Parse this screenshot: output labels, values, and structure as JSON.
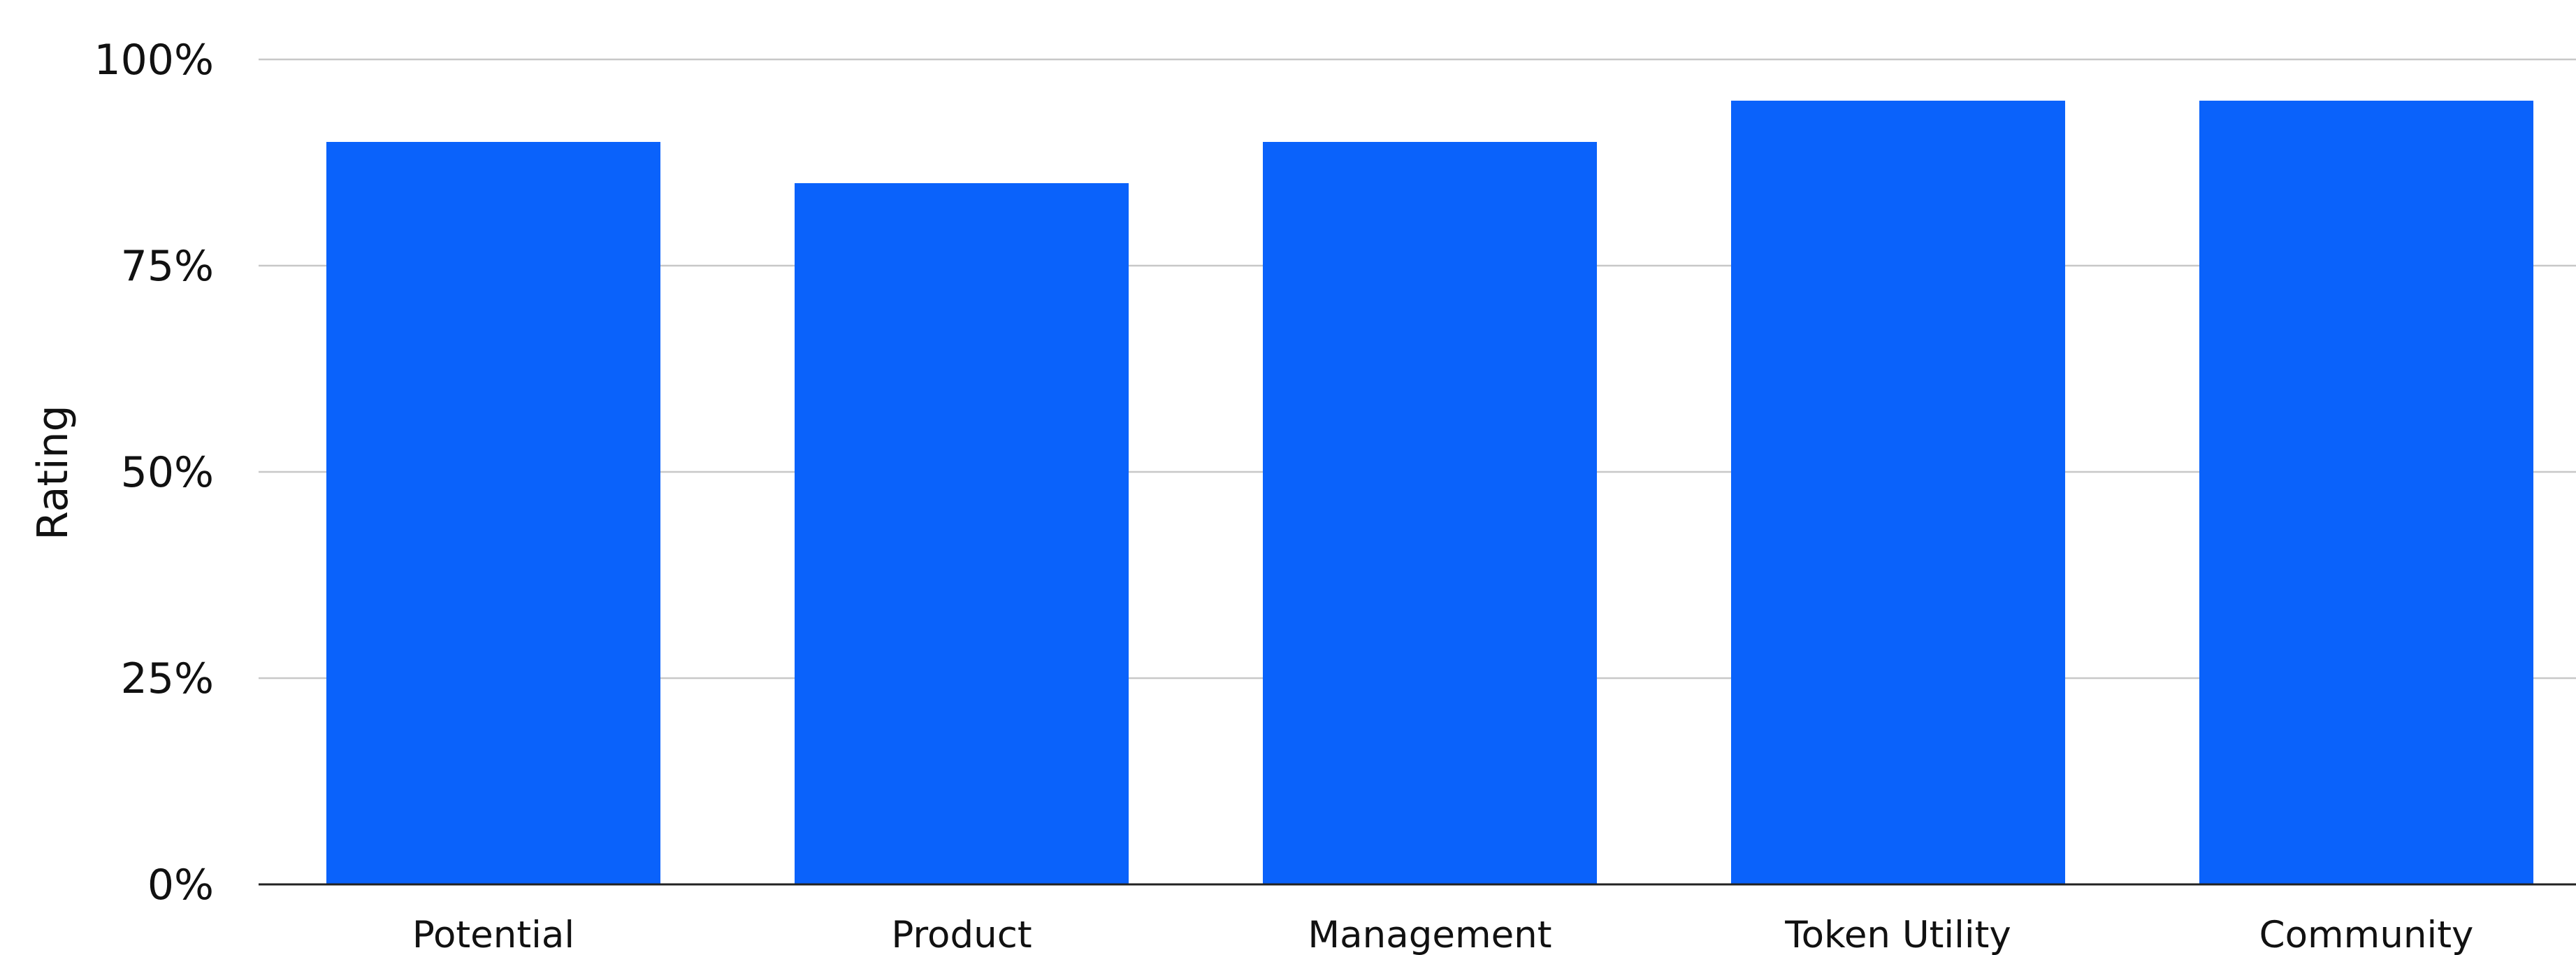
{
  "chart_data": {
    "type": "bar",
    "title": "",
    "xlabel": "",
    "ylabel": "Rating",
    "categories": [
      "Potential",
      "Product",
      "Management",
      "Token Utility",
      "Community"
    ],
    "values": [
      90,
      85,
      90,
      95,
      95
    ],
    "value_format": "percent",
    "ylim": [
      0,
      100
    ],
    "y_ticks": [
      0,
      25,
      50,
      75,
      100
    ],
    "y_tick_labels": [
      "0%",
      "25%",
      "50%",
      "75%",
      "100%"
    ],
    "grid": true,
    "legend": "none",
    "colors": {
      "bar": "#0a62fb",
      "grid": "#c8c8c8",
      "axis": "#222222",
      "text": "#111111"
    }
  }
}
